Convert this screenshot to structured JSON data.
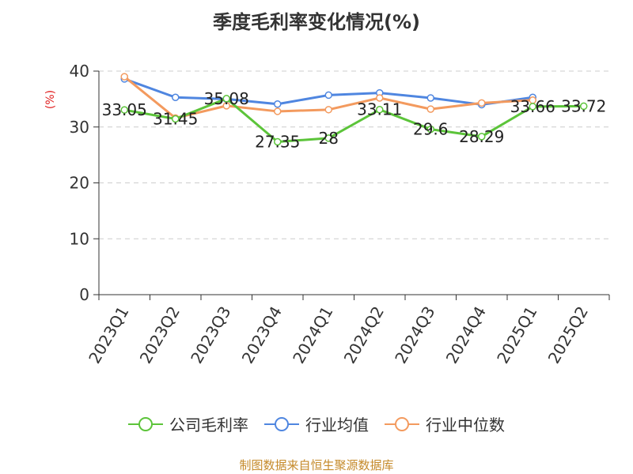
{
  "chart_data": {
    "type": "line",
    "title": "季度毛利率变化情况(%)",
    "ylabel": "(%)",
    "ylim": [
      0,
      40
    ],
    "yticks": [
      0,
      10,
      20,
      30,
      40
    ],
    "categories": [
      "2023Q1",
      "2023Q2",
      "2023Q3",
      "2023Q4",
      "2024Q1",
      "2024Q2",
      "2024Q3",
      "2024Q4",
      "2025Q1",
      "2025Q2"
    ],
    "grid": "dashed-horizontal",
    "legend_position": "bottom",
    "series": [
      {
        "name": "公司毛利率",
        "color": "#5cc43a",
        "values": [
          33.05,
          31.45,
          35.08,
          27.35,
          28,
          33.11,
          29.6,
          28.29,
          33.66,
          33.72
        ],
        "labels": [
          "33.05",
          "31.45",
          "35.08",
          "27.35",
          "28",
          "33.11",
          "29.6",
          "28.29",
          "33.66",
          "33.72"
        ]
      },
      {
        "name": "行业均值",
        "color": "#4f86e0",
        "values": [
          38.6,
          35.3,
          35.0,
          34.1,
          35.7,
          36.1,
          35.2,
          34.0,
          35.3,
          null
        ]
      },
      {
        "name": "行业中位数",
        "color": "#f39a5e",
        "values": [
          39.0,
          31.6,
          33.8,
          32.8,
          33.1,
          35.2,
          33.2,
          34.3,
          34.8,
          null
        ]
      }
    ]
  },
  "source_text": "制图数据来自恒生聚源数据库"
}
